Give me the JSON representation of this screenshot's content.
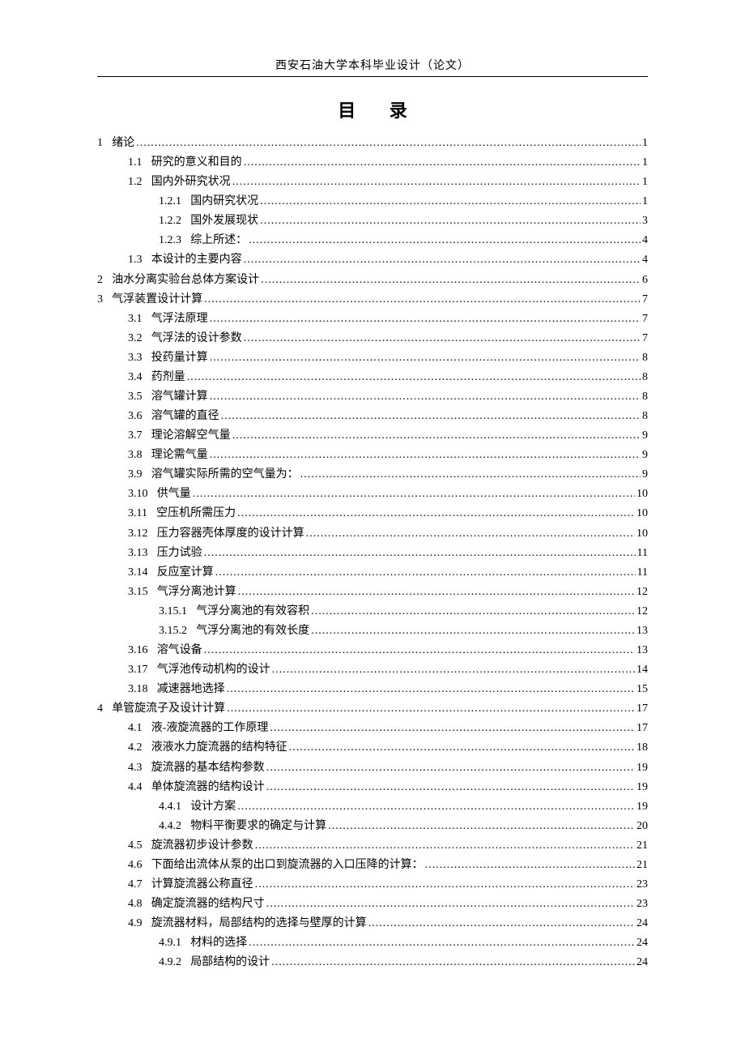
{
  "header": {
    "institution": "西安石油大学本科毕业设计（论文）"
  },
  "toc": {
    "title": "目 录",
    "entries": [
      {
        "level": 1,
        "num": "1",
        "text": "绪论",
        "page": "1"
      },
      {
        "level": 2,
        "num": "1.1",
        "text": "研究的意义和目的",
        "page": "1"
      },
      {
        "level": 2,
        "num": "1.2",
        "text": "国内外研究状况",
        "page": "1"
      },
      {
        "level": 3,
        "num": "1.2.1",
        "text": "国内研究状况",
        "page": "1"
      },
      {
        "level": 3,
        "num": "1.2.2",
        "text": "国外发展现状",
        "page": "3"
      },
      {
        "level": 3,
        "num": "1.2.3",
        "text": "综上所述：",
        "page": "4"
      },
      {
        "level": 2,
        "num": "1.3",
        "text": "本设计的主要内容",
        "page": "4"
      },
      {
        "level": 1,
        "num": "2",
        "text": "油水分离实验台总体方案设计",
        "page": "6"
      },
      {
        "level": 1,
        "num": "3",
        "text": "气浮装置设计计算",
        "page": "7"
      },
      {
        "level": 2,
        "num": "3.1",
        "text": "气浮法原理",
        "page": "7"
      },
      {
        "level": 2,
        "num": "3.2",
        "text": "气浮法的设计参数",
        "page": "7"
      },
      {
        "level": 2,
        "num": "3.3",
        "text": "投药量计算",
        "page": "8"
      },
      {
        "level": 2,
        "num": "3.4",
        "text": "药剂量",
        "page": "8"
      },
      {
        "level": 2,
        "num": "3.5",
        "text": "溶气罐计算",
        "page": "8"
      },
      {
        "level": 2,
        "num": "3.6",
        "text": "溶气罐的直径",
        "page": "8"
      },
      {
        "level": 2,
        "num": "3.7",
        "text": "理论溶解空气量",
        "page": "9"
      },
      {
        "level": 2,
        "num": "3.8",
        "text": "理论需气量",
        "page": "9"
      },
      {
        "level": 2,
        "num": "3.9",
        "text": "溶气罐实际所需的空气量为：",
        "page": "9"
      },
      {
        "level": 2,
        "num": "3.10",
        "text": "供气量",
        "page": "10"
      },
      {
        "level": 2,
        "num": "3.11",
        "text": "空压机所需压力",
        "page": "10"
      },
      {
        "level": 2,
        "num": "3.12",
        "text": "压力容器壳体厚度的设计计算",
        "page": "10"
      },
      {
        "level": 2,
        "num": "3.13",
        "text": "压力试验",
        "page": "11"
      },
      {
        "level": 2,
        "num": "3.14",
        "text": "反应室计算",
        "page": "11"
      },
      {
        "level": 2,
        "num": "3.15",
        "text": "气浮分离池计算",
        "page": "12"
      },
      {
        "level": 3,
        "num": "3.15.1",
        "text": "气浮分离池的有效容积",
        "page": "12"
      },
      {
        "level": 3,
        "num": "3.15.2",
        "text": "气浮分离池的有效长度",
        "page": "13"
      },
      {
        "level": 2,
        "num": "3.16",
        "text": "溶气设备",
        "page": "13"
      },
      {
        "level": 2,
        "num": "3.17",
        "text": "气浮池传动机构的设计",
        "page": "14"
      },
      {
        "level": 2,
        "num": "3.18",
        "text": "减速器地选择",
        "page": "15"
      },
      {
        "level": 1,
        "num": "4",
        "text": "单管旋流子及设计计算",
        "page": "17"
      },
      {
        "level": 2,
        "num": "4.1",
        "text": "液-液旋流器的工作原理",
        "page": "17"
      },
      {
        "level": 2,
        "num": "4.2",
        "text": "液液水力旋流器的结构特征",
        "page": "18"
      },
      {
        "level": 2,
        "num": "4.3",
        "text": "旋流器的基本结构参数",
        "page": "19"
      },
      {
        "level": 2,
        "num": "4.4",
        "text": "单体旋流器的结构设计",
        "page": "19"
      },
      {
        "level": 3,
        "num": "4.4.1",
        "text": "设计方案",
        "page": "19"
      },
      {
        "level": 3,
        "num": "4.4.2",
        "text": "物料平衡要求的确定与计算",
        "page": "20"
      },
      {
        "level": 2,
        "num": "4.5",
        "text": "旋流器初步设计参数",
        "page": "21"
      },
      {
        "level": 2,
        "num": "4.6",
        "text": "下面给出流体从泵的出口到旋流器的入口压降的计算：",
        "page": "21"
      },
      {
        "level": 2,
        "num": "4.7",
        "text": "计算旋流器公称直径",
        "page": "23"
      },
      {
        "level": 2,
        "num": "4.8",
        "text": "确定旋流器的结构尺寸",
        "page": "23"
      },
      {
        "level": 2,
        "num": "4.9",
        "text": "旋流器材料，局部结构的选择与壁厚的计算",
        "page": "24"
      },
      {
        "level": 3,
        "num": "4.9.1",
        "text": "材料的选择",
        "page": "24"
      },
      {
        "level": 3,
        "num": "4.9.2",
        "text": "局部结构的设计",
        "page": "24"
      }
    ]
  }
}
